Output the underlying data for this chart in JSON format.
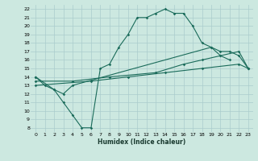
{
  "xlabel": "Humidex (Indice chaleur)",
  "bg_color": "#cce8e0",
  "line_color": "#1a6b5a",
  "grid_color": "#aacccc",
  "xlim": [
    -0.5,
    23.5
  ],
  "ylim": [
    7.5,
    22.5
  ],
  "xticks": [
    0,
    1,
    2,
    3,
    4,
    5,
    6,
    7,
    8,
    9,
    10,
    11,
    12,
    13,
    14,
    15,
    16,
    17,
    18,
    19,
    20,
    21,
    22,
    23
  ],
  "yticks": [
    8,
    9,
    10,
    11,
    12,
    13,
    14,
    15,
    16,
    17,
    18,
    19,
    20,
    21,
    22
  ],
  "line1_x": [
    0,
    1,
    2,
    3,
    4,
    5,
    6,
    7,
    8,
    9,
    10,
    11,
    12,
    13,
    14,
    15,
    16,
    17,
    18,
    19,
    20,
    21
  ],
  "line1_y": [
    14,
    13,
    12.5,
    11,
    9.5,
    8,
    8,
    15,
    15.5,
    17.5,
    19,
    21,
    21,
    21.5,
    22,
    21.5,
    21.5,
    20,
    18,
    17.5,
    16.5,
    16
  ],
  "line2_x": [
    0,
    2,
    3,
    4,
    19,
    20,
    21,
    22,
    23
  ],
  "line2_y": [
    14,
    12.5,
    12,
    13,
    17.5,
    17,
    17,
    16.5,
    15
  ],
  "line3_x": [
    0,
    4,
    8,
    13,
    16,
    18,
    20,
    22,
    23
  ],
  "line3_y": [
    13.5,
    13.5,
    14,
    14.5,
    15.5,
    16,
    16.5,
    17,
    15
  ],
  "line4_x": [
    0,
    6,
    10,
    14,
    18,
    22,
    23
  ],
  "line4_y": [
    13,
    13.5,
    14,
    14.5,
    15,
    15.5,
    15
  ]
}
